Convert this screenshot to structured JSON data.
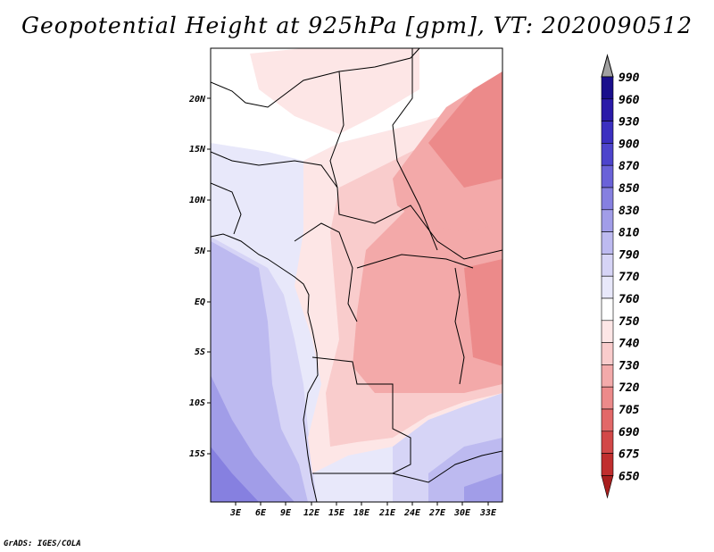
{
  "title": "Geopotential Height at 925hPa [gpm], VT: 2020090512",
  "credit": "GrADS: IGES/COLA",
  "lat_labels": [
    "20N",
    "15N",
    "10N",
    "5N",
    "EQ",
    "5S",
    "10S",
    "15S"
  ],
  "lon_labels": [
    "3E",
    "6E",
    "9E",
    "12E",
    "15E",
    "18E",
    "21E",
    "24E",
    "27E",
    "30E",
    "33E"
  ],
  "colorbar": {
    "levels": [
      "990",
      "960",
      "930",
      "900",
      "870",
      "850",
      "830",
      "810",
      "790",
      "770",
      "760",
      "750",
      "740",
      "730",
      "720",
      "705",
      "690",
      "675",
      "650"
    ],
    "colors": [
      "#1a0f8c",
      "#2a1aa8",
      "#3b2fc0",
      "#4d44cc",
      "#6a62d8",
      "#8680e0",
      "#a19de8",
      "#bdbaf0",
      "#d6d4f6",
      "#e8e8fa",
      "#ffffff",
      "#fde6e6",
      "#f9cccc",
      "#f3aaaa",
      "#ec8a8a",
      "#e26868",
      "#d24848",
      "#c02e2e",
      "#a81e1e"
    ],
    "top_arrow_color": "#a0a0a0"
  },
  "field_colors": {
    "low_red": "#e98b8b",
    "mid_red": "#f3a9a9",
    "light_red": "#f9cccc",
    "pale_red": "#fde6e6",
    "white": "#ffffff",
    "pale_blue": "#e8e8fa",
    "light_blue": "#d6d4f6",
    "blue": "#bdbaf0",
    "deep_blue": "#a19de8",
    "deeper_blue": "#8680e0"
  }
}
